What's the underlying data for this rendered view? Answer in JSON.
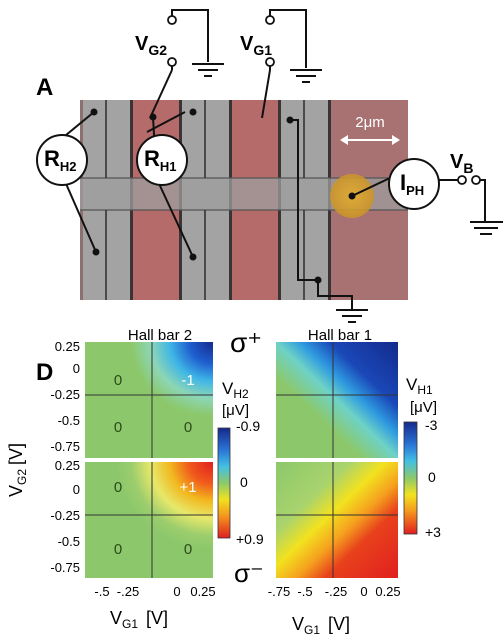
{
  "colors": {
    "device_bg": "#8c6f6f",
    "gray_strip": "#a3a3a3",
    "red_strip": "#b66b6b",
    "beam": "#d9a431",
    "map_green": "#8cc86b",
    "map_blue": "#142a8c",
    "map_red": "#e01f1f",
    "map_yellow": "#f2e21f"
  },
  "panelA": {
    "letter": "A",
    "circles": {
      "rh2": {
        "main": "R",
        "sub": "H2"
      },
      "rh1": {
        "main": "R",
        "sub": "H1"
      },
      "iph": {
        "main": "I",
        "sub": "PH"
      }
    },
    "gate_labels": {
      "vg2": {
        "main": "V",
        "sub": "G2"
      },
      "vg1": {
        "main": "V",
        "sub": "G1"
      },
      "vb": {
        "main": "V",
        "sub": "B"
      }
    },
    "scale_bar": "2μm"
  },
  "panelD": {
    "letter": "D",
    "hb2_title": "Hall bar 2",
    "hb1_title": "Hall bar 1",
    "sigma_plus": "σ⁺",
    "sigma_minus": "σ⁻",
    "y_axis_label": "V",
    "y_axis_sub": "G2",
    "y_axis_unit": "[V]",
    "y_ticks_top": [
      "0.25",
      "0",
      "-0.25",
      "-0.5",
      "-0.75"
    ],
    "y_ticks_bottom": [
      "0.25",
      "0",
      "-0.25",
      "-0.5",
      "-0.75"
    ],
    "x_ticks_left": [
      "-.5",
      "-.25",
      "0",
      "0.25"
    ],
    "x_ticks_right": [
      "-.75",
      "-.5",
      "-.25",
      "0",
      "0.25"
    ],
    "x_label_left": {
      "main": "V",
      "sub": "G1",
      "unit": "[V]"
    },
    "x_label_right": {
      "main": "V",
      "sub": "G1",
      "unit": "[V]"
    },
    "colorbar_left": {
      "qty": "V",
      "sub": "H2",
      "unit": "[μV]",
      "top": "-0.9",
      "mid": "0",
      "bottom": "+0.9"
    },
    "colorbar_right": {
      "qty": "V",
      "sub": "H1",
      "unit": "[μV]",
      "top": "-3",
      "mid": "0",
      "bottom": "+3"
    },
    "quad_labels_top": [
      "0",
      "-1",
      "0",
      "0"
    ],
    "quad_labels_bottom": [
      "0",
      "+1",
      "0",
      "0"
    ]
  }
}
